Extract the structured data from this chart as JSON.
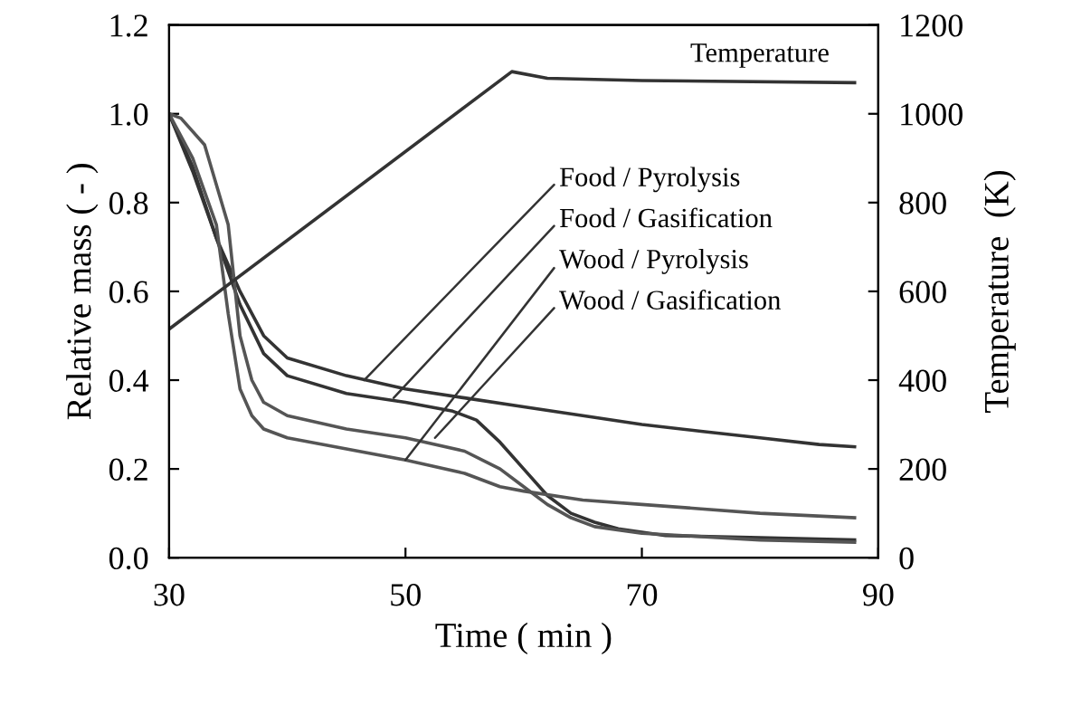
{
  "chart_data": {
    "type": "line",
    "xlabel": "Time ( min )",
    "ylabel": "Relative mass ( - )",
    "y2label": "Temperature  (K)",
    "xlim": [
      30,
      90
    ],
    "xticks": [
      30,
      50,
      70,
      90
    ],
    "ylim": [
      0,
      1.2
    ],
    "yticks": [
      {
        "value": 0,
        "label": "0.0"
      },
      {
        "value": 0.2,
        "label": "0.2"
      },
      {
        "value": 0.4,
        "label": "0.4"
      },
      {
        "value": 0.6,
        "label": "0.6"
      },
      {
        "value": 0.8,
        "label": "0.8"
      },
      {
        "value": 1.0,
        "label": "1.0"
      },
      {
        "value": 1.2,
        "label": "1.2"
      }
    ],
    "y2lim": [
      0,
      1200
    ],
    "y2ticks": [
      0,
      200,
      400,
      600,
      800,
      1000,
      1200
    ],
    "grid": false,
    "legend": false,
    "marker": "none",
    "line_style": "solid",
    "series": [
      {
        "color": "#333333",
        "x": [
          30,
          32,
          34,
          36,
          37,
          38,
          40,
          45,
          50,
          55,
          60,
          65,
          70,
          75,
          80,
          85,
          88
        ],
        "values": [
          1.0,
          0.88,
          0.72,
          0.6,
          0.55,
          0.5,
          0.45,
          0.41,
          0.38,
          0.36,
          0.34,
          0.32,
          0.3,
          0.285,
          0.27,
          0.255,
          0.25
        ]
      },
      {
        "color": "#333333",
        "x": [
          30,
          32,
          34,
          36,
          38,
          40,
          45,
          50,
          54,
          56,
          58,
          60,
          62,
          64,
          66,
          68,
          72,
          80,
          88
        ],
        "values": [
          1.0,
          0.87,
          0.72,
          0.57,
          0.46,
          0.41,
          0.37,
          0.35,
          0.33,
          0.31,
          0.26,
          0.2,
          0.14,
          0.1,
          0.08,
          0.065,
          0.05,
          0.045,
          0.04
        ]
      },
      {
        "color": "#555555",
        "x": [
          30,
          31,
          33,
          35,
          36,
          37,
          38,
          40,
          45,
          50,
          55,
          58,
          60,
          62,
          64,
          66,
          70,
          80,
          88
        ],
        "values": [
          1.0,
          0.99,
          0.93,
          0.75,
          0.5,
          0.4,
          0.35,
          0.32,
          0.29,
          0.27,
          0.24,
          0.2,
          0.16,
          0.12,
          0.09,
          0.07,
          0.055,
          0.04,
          0.035
        ]
      },
      {
        "color": "#555555",
        "x": [
          30,
          32,
          34,
          35,
          36,
          37,
          38,
          40,
          45,
          50,
          55,
          58,
          60,
          65,
          70,
          75,
          80,
          88
        ],
        "values": [
          1.0,
          0.9,
          0.75,
          0.55,
          0.38,
          0.32,
          0.29,
          0.27,
          0.245,
          0.22,
          0.19,
          0.16,
          0.15,
          0.13,
          0.12,
          0.11,
          0.1,
          0.09
        ]
      },
      {
        "name": "Temperature",
        "axis": "y2",
        "color": "#333333",
        "x": [
          30,
          59,
          62,
          70,
          88
        ],
        "values": [
          515,
          1095,
          1080,
          1075,
          1070
        ]
      }
    ],
    "annotations": [
      {
        "text": "Food / Pyrolysis",
        "x": 46.5,
        "y": 0.4
      },
      {
        "text": "Food / Gasification",
        "x": 49,
        "y": 0.36
      },
      {
        "text": "Wood / Pyrolysis",
        "x": 50,
        "y": 0.22
      },
      {
        "text": "Wood / Gasification",
        "x": 52.5,
        "y": 0.27
      }
    ]
  }
}
